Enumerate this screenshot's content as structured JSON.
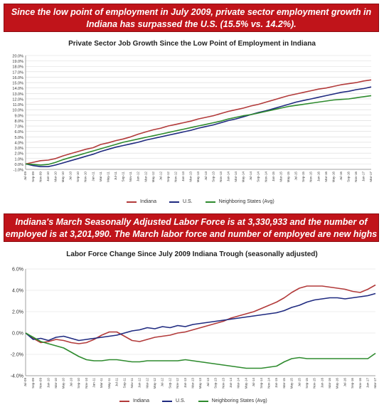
{
  "banners": {
    "top": "Since the low point of employment in July 2009, private sector employment growth in Indiana has surpassed the U.S. (15.5% vs. 14.2%).",
    "middle": "Indiana's March Seasonally Adjusted  Labor Force is at 3,330,933 and the number of employed is at 3,201,990. The March labor force and number of employed are new highs for Indiana."
  },
  "colors": {
    "indiana": "#b23a3a",
    "us": "#1f2a80",
    "neighboring": "#2e8b2e",
    "banner": "#c0141a"
  },
  "chart_data": [
    {
      "type": "line",
      "title": "Private Sector Job Growth Since the Low Point of Employment in Indiana",
      "xlabel": "",
      "ylabel": "",
      "ylim": [
        -1,
        20
      ],
      "ytick_step": 1,
      "y_format": "percent1",
      "grid": true,
      "legend_position": "bottom",
      "x": [
        "Jul-09",
        "Sep-09",
        "Nov-09",
        "Jan-10",
        "Mar-10",
        "May-10",
        "Jul-10",
        "Sep-10",
        "Nov-10",
        "Jan-11",
        "Mar-11",
        "May-11",
        "Jul-11",
        "Sep-11",
        "Nov-11",
        "Jan-12",
        "Mar-12",
        "May-12",
        "Jul-12",
        "Sep-12",
        "Nov-12",
        "Jan-13",
        "Mar-13",
        "May-13",
        "Jul-13",
        "Sep-13",
        "Nov-13",
        "Jan-14",
        "Mar-14",
        "May-14",
        "Jul-14",
        "Sep-14",
        "Nov-14",
        "Jan-15",
        "Mar-15",
        "May-15",
        "Jul-15",
        "Sep-15",
        "Nov-15",
        "Jan-16",
        "Mar-16",
        "May-16",
        "Jul-16",
        "Sep-16",
        "Nov-16",
        "Jan-17",
        "Mar-17"
      ],
      "series": [
        {
          "name": "Indiana",
          "values": [
            0.0,
            0.3,
            0.6,
            0.7,
            1.0,
            1.5,
            1.9,
            2.3,
            2.7,
            3.0,
            3.6,
            3.9,
            4.3,
            4.6,
            5.0,
            5.5,
            5.9,
            6.3,
            6.6,
            7.0,
            7.3,
            7.6,
            7.9,
            8.3,
            8.6,
            8.9,
            9.3,
            9.7,
            10.0,
            10.3,
            10.7,
            11.0,
            11.4,
            11.8,
            12.2,
            12.6,
            12.9,
            13.2,
            13.5,
            13.8,
            14.0,
            14.3,
            14.6,
            14.8,
            15.0,
            15.3,
            15.5
          ]
        },
        {
          "name": "U.S.",
          "values": [
            0.0,
            -0.3,
            -0.5,
            -0.5,
            -0.2,
            0.2,
            0.6,
            1.0,
            1.4,
            1.8,
            2.3,
            2.7,
            3.1,
            3.4,
            3.7,
            4.0,
            4.4,
            4.7,
            5.0,
            5.3,
            5.6,
            5.9,
            6.2,
            6.6,
            6.9,
            7.2,
            7.6,
            8.0,
            8.3,
            8.7,
            9.1,
            9.5,
            9.8,
            10.2,
            10.6,
            11.0,
            11.4,
            11.7,
            12.0,
            12.3,
            12.6,
            12.9,
            13.2,
            13.4,
            13.7,
            13.9,
            14.2
          ]
        },
        {
          "name": "Neighboring States (Avg)",
          "values": [
            0.0,
            -0.1,
            -0.2,
            -0.1,
            0.3,
            0.8,
            1.2,
            1.6,
            2.0,
            2.4,
            2.8,
            3.2,
            3.6,
            4.0,
            4.3,
            4.6,
            4.9,
            5.2,
            5.5,
            5.8,
            6.1,
            6.4,
            6.7,
            7.0,
            7.3,
            7.6,
            7.9,
            8.3,
            8.6,
            8.9,
            9.1,
            9.4,
            9.7,
            10.0,
            10.3,
            10.6,
            10.8,
            11.0,
            11.2,
            11.4,
            11.6,
            11.8,
            11.9,
            12.0,
            12.2,
            12.4,
            12.6
          ]
        }
      ]
    },
    {
      "type": "line",
      "title": "Labor Force Change Since July 2009 Indiana Trough (seasonally adjusted)",
      "xlabel": "",
      "ylabel": "",
      "ylim": [
        -4,
        6
      ],
      "ytick_step": 2,
      "y_format": "percent1",
      "grid": true,
      "legend_position": "bottom",
      "x": [
        "Jul-09",
        "Sep-09",
        "Nov-09",
        "Jan-10",
        "Mar-10",
        "May-10",
        "Jul-10",
        "Sep-10",
        "Nov-10",
        "Jan-11",
        "Mar-11",
        "May-11",
        "Jul-11",
        "Sep-11",
        "Nov-11",
        "Jan-12",
        "Mar-12",
        "May-12",
        "Jul-12",
        "Sep-12",
        "Nov-12",
        "Jan-13",
        "Mar-13",
        "May-13",
        "Jul-13",
        "Sep-13",
        "Nov-13",
        "Jan-14",
        "Mar-14",
        "May-14",
        "Jul-14",
        "Sep-14",
        "Nov-14",
        "Jan-15",
        "Mar-15",
        "May-15",
        "Jul-15",
        "Sep-15",
        "Nov-15",
        "Jan-16",
        "Mar-16",
        "May-16",
        "Jul-16",
        "Sep-16",
        "Nov-16",
        "Jan-17",
        "Mar-17"
      ],
      "series": [
        {
          "name": "Indiana",
          "values": [
            0.0,
            -0.5,
            -0.9,
            -0.8,
            -0.6,
            -0.7,
            -0.9,
            -1.0,
            -0.9,
            -0.6,
            -0.2,
            0.1,
            0.1,
            -0.3,
            -0.7,
            -0.8,
            -0.6,
            -0.4,
            -0.3,
            -0.2,
            0.0,
            0.1,
            0.3,
            0.5,
            0.7,
            0.9,
            1.1,
            1.4,
            1.6,
            1.8,
            2.0,
            2.3,
            2.6,
            2.9,
            3.3,
            3.8,
            4.2,
            4.4,
            4.4,
            4.4,
            4.3,
            4.2,
            4.1,
            3.9,
            3.8,
            4.1,
            4.5
          ]
        },
        {
          "name": "U.S.",
          "values": [
            0.0,
            -0.6,
            -0.5,
            -0.7,
            -0.4,
            -0.3,
            -0.5,
            -0.7,
            -0.6,
            -0.5,
            -0.4,
            -0.3,
            -0.2,
            0.0,
            0.2,
            0.3,
            0.5,
            0.4,
            0.6,
            0.5,
            0.7,
            0.6,
            0.8,
            0.9,
            1.0,
            1.1,
            1.2,
            1.3,
            1.4,
            1.5,
            1.6,
            1.7,
            1.8,
            1.9,
            2.1,
            2.4,
            2.6,
            2.9,
            3.1,
            3.2,
            3.3,
            3.3,
            3.2,
            3.3,
            3.4,
            3.5,
            3.7
          ]
        },
        {
          "name": "Neighboring States (Avg)",
          "values": [
            0.0,
            -0.4,
            -0.8,
            -1.0,
            -1.2,
            -1.4,
            -1.8,
            -2.2,
            -2.5,
            -2.6,
            -2.6,
            -2.5,
            -2.5,
            -2.6,
            -2.7,
            -2.7,
            -2.6,
            -2.6,
            -2.6,
            -2.6,
            -2.6,
            -2.5,
            -2.6,
            -2.7,
            -2.8,
            -2.9,
            -3.0,
            -3.1,
            -3.2,
            -3.3,
            -3.3,
            -3.3,
            -3.2,
            -3.1,
            -2.7,
            -2.4,
            -2.3,
            -2.4,
            -2.4,
            -2.4,
            -2.4,
            -2.4,
            -2.4,
            -2.4,
            -2.4,
            -2.4,
            -1.9
          ]
        }
      ]
    }
  ]
}
